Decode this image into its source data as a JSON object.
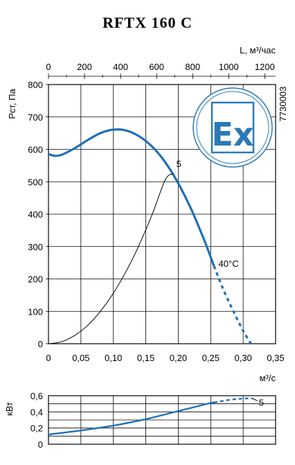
{
  "chart_data": [
    {
      "type": "line",
      "title": "RFTX 160 C",
      "xlabel": "м³/с",
      "ylabel": "Pст, Па",
      "x2label": "L, м³/час",
      "xlim": [
        0,
        0.35
      ],
      "ylim": [
        0,
        800
      ],
      "x2lim": [
        0,
        1260
      ],
      "xticks": [
        "0",
        "0,05",
        "0,10",
        "0,15",
        "0,20",
        "0,25",
        "0,30",
        "0,35"
      ],
      "yticks": [
        "0",
        "100",
        "200",
        "300",
        "400",
        "500",
        "600",
        "700",
        "800"
      ],
      "x2ticks": [
        "0",
        "200",
        "400",
        "600",
        "800",
        "1000",
        "1200"
      ],
      "grid": true,
      "side_code": "7730003",
      "badge_text": "Ex",
      "colors": {
        "curve": "#1f6fb4",
        "badge": "#2a7ab8"
      },
      "series": [
        {
          "kind": "fan-curve",
          "x": [
            0,
            0.01,
            0.02,
            0.04,
            0.06,
            0.08,
            0.1,
            0.12,
            0.14,
            0.16,
            0.18,
            0.2,
            0.22,
            0.24,
            0.255
          ],
          "y": [
            585,
            580,
            583,
            603,
            628,
            650,
            661,
            658,
            640,
            608,
            560,
            495,
            415,
            320,
            240
          ]
        },
        {
          "kind": "fan-curve-extended",
          "x": [
            0.255,
            0.27,
            0.285,
            0.3,
            0.312
          ],
          "y": [
            240,
            165,
            100,
            40,
            0
          ]
        },
        {
          "kind": "system-curve",
          "x": [
            0,
            0.02,
            0.04,
            0.06,
            0.08,
            0.1,
            0.12,
            0.14,
            0.16,
            0.18,
            0.192
          ],
          "y": [
            0,
            6,
            25,
            56,
            100,
            156,
            225,
            306,
            400,
            506,
            525
          ]
        }
      ],
      "annotations": [
        {
          "text": "5",
          "x": 0.197,
          "y": 545
        },
        {
          "text": "40°C",
          "x": 0.262,
          "y": 237
        }
      ]
    },
    {
      "type": "line",
      "ylabel": "кВт",
      "xlim": [
        0,
        0.35
      ],
      "ylim": [
        0,
        0.6
      ],
      "yticks": [
        "0",
        "0,2",
        "0,4",
        "0,6"
      ],
      "grid": true,
      "series": [
        {
          "kind": "power",
          "x": [
            0,
            0.05,
            0.1,
            0.15,
            0.2,
            0.25,
            0.255
          ],
          "y": [
            0.12,
            0.17,
            0.23,
            0.31,
            0.41,
            0.51,
            0.515
          ]
        },
        {
          "kind": "power-extended",
          "x": [
            0.255,
            0.28,
            0.3,
            0.315
          ],
          "y": [
            0.515,
            0.55,
            0.565,
            0.565
          ]
        }
      ],
      "annotations": [
        {
          "text": "5",
          "x": 0.322,
          "y": 0.51
        }
      ]
    }
  ]
}
